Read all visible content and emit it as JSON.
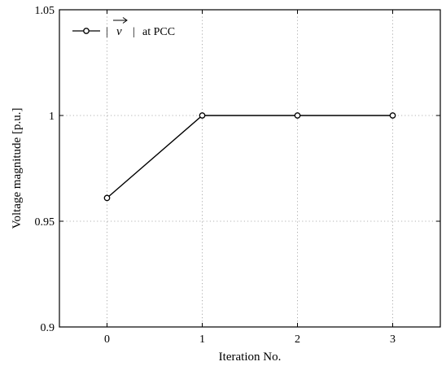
{
  "chart_data": {
    "type": "line",
    "xlabel": "Iteration No.",
    "ylabel": "Voltage magnitude [p.u.]",
    "xlim": [
      -0.5,
      3.5
    ],
    "ylim": [
      0.9,
      1.05
    ],
    "xticks": [
      0,
      1,
      2,
      3
    ],
    "xtick_labels": [
      "0",
      "1",
      "2",
      "3"
    ],
    "yticks": [
      0.9,
      0.95,
      1.0,
      1.05
    ],
    "ytick_labels": [
      "0.9",
      "0.95",
      "1",
      "1.05"
    ],
    "grid": "dotted",
    "legend_position": "top-left",
    "series": [
      {
        "name": "at PCC",
        "legend_symbol": "v",
        "marker": "open-circle",
        "color": "#000000",
        "x": [
          0,
          1,
          2,
          3
        ],
        "y": [
          0.961,
          1.0,
          1.0,
          1.0
        ]
      }
    ]
  }
}
